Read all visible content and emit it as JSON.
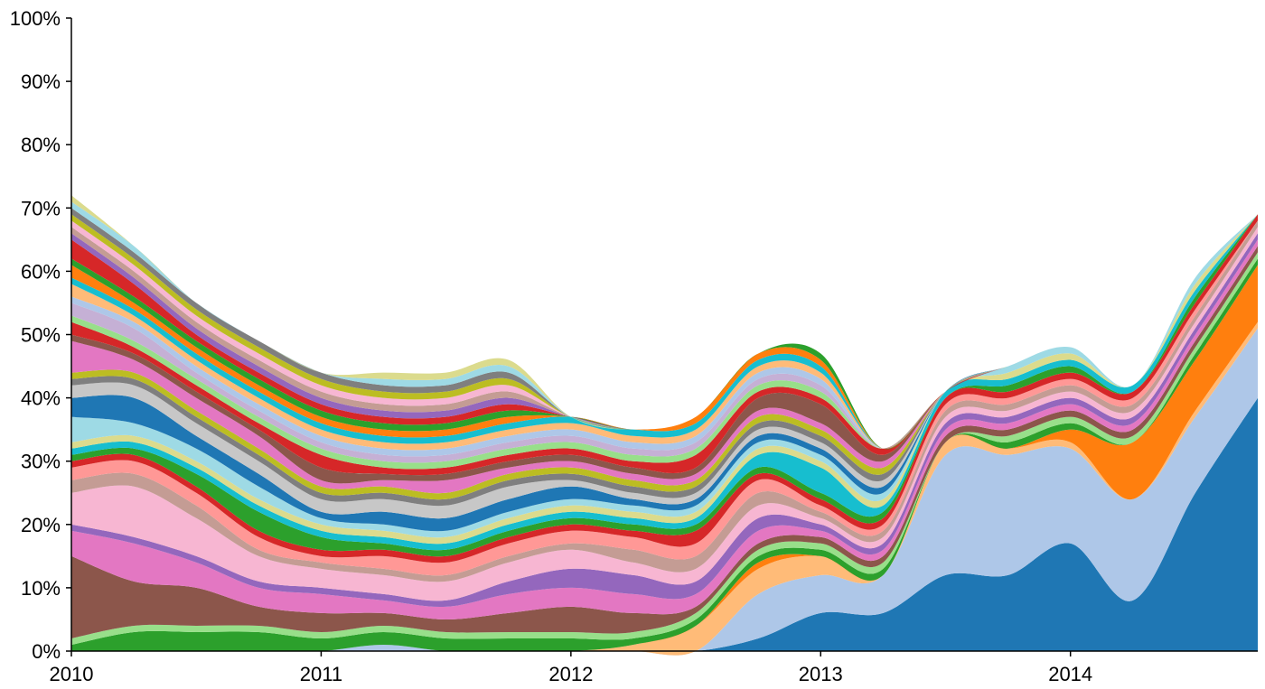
{
  "chart_data": {
    "type": "area",
    "stacked": true,
    "x_unit": "date",
    "x": [
      "2010-01",
      "2010-04",
      "2010-07",
      "2010-10",
      "2011-01",
      "2011-04",
      "2011-07",
      "2011-10",
      "2012-01",
      "2012-04",
      "2012-07",
      "2012-10",
      "2013-01",
      "2013-04",
      "2013-07",
      "2013-10",
      "2014-01",
      "2014-04",
      "2014-07",
      "2014-10"
    ],
    "xlim": [
      "2010-01",
      "2014-10"
    ],
    "ylim": [
      0,
      100
    ],
    "y_ticks": [
      "0%",
      "10%",
      "20%",
      "30%",
      "40%",
      "50%",
      "60%",
      "70%",
      "80%",
      "90%",
      "100%"
    ],
    "x_ticks": [
      "2010",
      "2011",
      "2012",
      "2013",
      "2014"
    ],
    "grid": false,
    "legend": "none",
    "series": [
      {
        "color": "#1f77b4",
        "values": [
          0,
          0,
          0,
          0,
          0,
          0,
          0,
          0,
          0,
          0,
          0,
          2,
          6,
          6,
          12,
          12,
          17,
          8,
          25,
          40
        ]
      },
      {
        "color": "#aec7e8",
        "values": [
          0,
          0,
          0,
          0,
          0,
          1,
          0,
          0,
          0,
          0,
          0,
          7,
          6,
          6,
          19,
          19,
          15,
          16,
          12,
          11
        ]
      },
      {
        "color": "#ffbb78",
        "values": [
          0,
          0,
          0,
          0,
          0,
          0,
          0,
          0,
          0,
          1,
          4,
          4,
          3,
          0,
          2,
          1,
          1,
          0,
          1,
          1
        ]
      },
      {
        "color": "#ff7f0e",
        "values": [
          0,
          0,
          0,
          0,
          0,
          0,
          0,
          0,
          0,
          0,
          0,
          1,
          0,
          0,
          0,
          0,
          2,
          9,
          8,
          9
        ]
      },
      {
        "color": "#2ca02c",
        "values": [
          1,
          3,
          3,
          3,
          2,
          2,
          2,
          2,
          2,
          1,
          1,
          1,
          1,
          1,
          0,
          1,
          1,
          0,
          1,
          1
        ]
      },
      {
        "color": "#98df8a",
        "values": [
          1,
          1,
          1,
          1,
          1,
          1,
          1,
          1,
          1,
          1,
          1,
          1,
          1,
          1,
          0,
          1,
          1,
          1,
          1,
          1
        ]
      },
      {
        "color": "#8c564b",
        "values": [
          13,
          7,
          6,
          3,
          3,
          2,
          2,
          3,
          4,
          3,
          1,
          1,
          1,
          1,
          1,
          1,
          1,
          1,
          1,
          1
        ]
      },
      {
        "color": "#e377c2",
        "values": [
          4,
          6,
          4,
          3,
          3,
          2,
          2,
          3,
          3,
          3,
          2,
          2,
          1,
          1,
          1,
          1,
          1,
          1,
          1,
          1
        ]
      },
      {
        "color": "#9467bd",
        "values": [
          1,
          1,
          1,
          1,
          1,
          1,
          1,
          2,
          3,
          3,
          2,
          2,
          1,
          1,
          1,
          1,
          1,
          1,
          1,
          1
        ]
      },
      {
        "color": "#f7b6d2",
        "values": [
          5,
          8,
          6,
          4,
          3,
          3,
          3,
          3,
          3,
          2,
          2,
          2,
          1,
          1,
          1,
          1,
          1,
          1,
          1,
          1
        ]
      },
      {
        "color": "#c49c94",
        "values": [
          2,
          2,
          2,
          1,
          1,
          1,
          1,
          1,
          1,
          2,
          2,
          2,
          1,
          1,
          1,
          1,
          1,
          1,
          1,
          1
        ]
      },
      {
        "color": "#ff9896",
        "values": [
          2,
          2,
          2,
          2,
          1,
          2,
          2,
          2,
          2,
          2,
          2,
          2,
          1,
          1,
          1,
          1,
          1,
          1,
          1,
          0
        ]
      },
      {
        "color": "#d62728",
        "values": [
          1,
          1,
          1,
          1,
          1,
          1,
          1,
          1,
          1,
          1,
          2,
          1,
          1,
          1,
          1,
          1,
          1,
          1,
          1,
          1
        ]
      },
      {
        "color": "#2ca02c",
        "values": [
          1,
          1,
          2,
          3,
          2,
          1,
          1,
          1,
          1,
          1,
          1,
          1,
          1,
          1,
          0,
          1,
          1,
          0,
          1,
          0
        ]
      },
      {
        "color": "#17becf",
        "values": [
          1,
          1,
          1,
          1,
          1,
          1,
          1,
          1,
          1,
          1,
          1,
          2,
          4,
          1,
          1,
          1,
          1,
          1,
          1,
          0
        ]
      },
      {
        "color": "#dbdb8d",
        "values": [
          1,
          1,
          1,
          1,
          1,
          1,
          1,
          1,
          1,
          1,
          1,
          1,
          1,
          1,
          0,
          1,
          1,
          0,
          1,
          0
        ]
      },
      {
        "color": "#9edae5",
        "values": [
          4,
          2,
          2,
          2,
          1,
          1,
          1,
          1,
          1,
          1,
          1,
          1,
          1,
          1,
          0,
          1,
          1,
          0,
          1,
          0
        ]
      },
      {
        "color": "#1f77b4",
        "values": [
          3,
          4,
          2,
          2,
          1,
          2,
          2,
          2,
          2,
          1,
          1,
          1,
          1,
          1,
          0,
          0,
          0,
          0,
          0,
          0
        ]
      },
      {
        "color": "#c7c7c7",
        "values": [
          2,
          2,
          2,
          2,
          2,
          2,
          2,
          2,
          1,
          1,
          1,
          1,
          1,
          1,
          0,
          0,
          0,
          0,
          0,
          0
        ]
      },
      {
        "color": "#7f7f7f",
        "values": [
          1,
          1,
          1,
          1,
          1,
          1,
          1,
          1,
          1,
          1,
          1,
          1,
          1,
          1,
          0,
          0,
          0,
          0,
          0,
          0
        ]
      },
      {
        "color": "#bcbd22",
        "values": [
          1,
          1,
          1,
          1,
          1,
          1,
          1,
          1,
          1,
          1,
          1,
          1,
          1,
          1,
          0,
          0,
          0,
          0,
          0,
          0
        ]
      },
      {
        "color": "#e377c2",
        "values": [
          5,
          2,
          2,
          2,
          1,
          1,
          2,
          1,
          1,
          1,
          1,
          1,
          1,
          1,
          0,
          0,
          0,
          0,
          0,
          0
        ]
      },
      {
        "color": "#8c564b",
        "values": [
          1,
          1,
          1,
          1,
          2,
          1,
          1,
          1,
          1,
          1,
          1,
          2,
          3,
          1,
          0,
          0,
          0,
          0,
          0,
          0
        ]
      },
      {
        "color": "#d62728",
        "values": [
          2,
          1,
          1,
          1,
          2,
          1,
          1,
          1,
          1,
          1,
          2,
          1,
          1,
          1,
          0,
          0,
          0,
          0,
          0,
          0
        ]
      },
      {
        "color": "#98df8a",
        "values": [
          1,
          1,
          1,
          1,
          1,
          1,
          1,
          1,
          1,
          1,
          1,
          1,
          1,
          0,
          0,
          0,
          0,
          0,
          0,
          0
        ]
      },
      {
        "color": "#c5b0d5",
        "values": [
          2,
          2,
          1,
          1,
          1,
          1,
          1,
          1,
          1,
          1,
          1,
          1,
          1,
          0,
          0,
          0,
          0,
          0,
          0,
          0
        ]
      },
      {
        "color": "#aec7e8",
        "values": [
          1,
          1,
          1,
          1,
          1,
          1,
          1,
          1,
          1,
          1,
          1,
          1,
          1,
          0,
          0,
          0,
          0,
          0,
          0,
          0
        ]
      },
      {
        "color": "#ffbb78",
        "values": [
          2,
          1,
          1,
          1,
          1,
          1,
          1,
          1,
          1,
          1,
          1,
          1,
          1,
          0,
          0,
          0,
          0,
          0,
          0,
          0
        ]
      },
      {
        "color": "#17becf",
        "values": [
          1,
          1,
          1,
          1,
          1,
          1,
          1,
          1,
          1,
          1,
          1,
          1,
          1,
          0,
          0,
          0,
          0,
          0,
          0,
          0
        ]
      },
      {
        "color": "#ff7f0e",
        "values": [
          2,
          1,
          1,
          1,
          1,
          1,
          1,
          1,
          0,
          0,
          1,
          1,
          1,
          0,
          0,
          0,
          0,
          0,
          0,
          0
        ]
      },
      {
        "color": "#2ca02c",
        "values": [
          1,
          1,
          1,
          1,
          1,
          1,
          1,
          1,
          0,
          0,
          0,
          0,
          1,
          0,
          0,
          0,
          0,
          0,
          0,
          0
        ]
      },
      {
        "color": "#d62728",
        "values": [
          3,
          2,
          1,
          1,
          1,
          1,
          1,
          1,
          0,
          0,
          0,
          0,
          0,
          0,
          0,
          0,
          0,
          0,
          0,
          0
        ]
      },
      {
        "color": "#9467bd",
        "values": [
          1,
          1,
          1,
          1,
          1,
          1,
          1,
          1,
          0,
          0,
          0,
          0,
          0,
          0,
          0,
          0,
          0,
          0,
          0,
          0
        ]
      },
      {
        "color": "#c49c94",
        "values": [
          1,
          1,
          1,
          1,
          1,
          1,
          1,
          1,
          0,
          0,
          0,
          0,
          0,
          0,
          0,
          0,
          0,
          0,
          0,
          0
        ]
      },
      {
        "color": "#f7b6d2",
        "values": [
          1,
          1,
          1,
          1,
          1,
          1,
          1,
          1,
          0,
          0,
          0,
          0,
          0,
          0,
          0,
          0,
          0,
          0,
          0,
          0
        ]
      },
      {
        "color": "#bcbd22",
        "values": [
          1,
          1,
          1,
          1,
          1,
          1,
          1,
          1,
          0,
          0,
          0,
          0,
          0,
          0,
          0,
          0,
          0,
          0,
          0,
          0
        ]
      },
      {
        "color": "#7f7f7f",
        "values": [
          1,
          1,
          1,
          1,
          1,
          1,
          1,
          1,
          0,
          0,
          0,
          0,
          0,
          0,
          0,
          0,
          0,
          0,
          0,
          0
        ]
      },
      {
        "color": "#9edae5",
        "values": [
          1,
          1,
          0,
          0,
          0,
          1,
          1,
          1,
          0,
          0,
          0,
          0,
          0,
          0,
          0,
          0,
          0,
          0,
          0,
          0
        ]
      },
      {
        "color": "#dbdb8d",
        "values": [
          1,
          0,
          0,
          0,
          0,
          1,
          1,
          1,
          0,
          0,
          0,
          0,
          0,
          0,
          0,
          0,
          0,
          0,
          0,
          0
        ]
      }
    ]
  }
}
